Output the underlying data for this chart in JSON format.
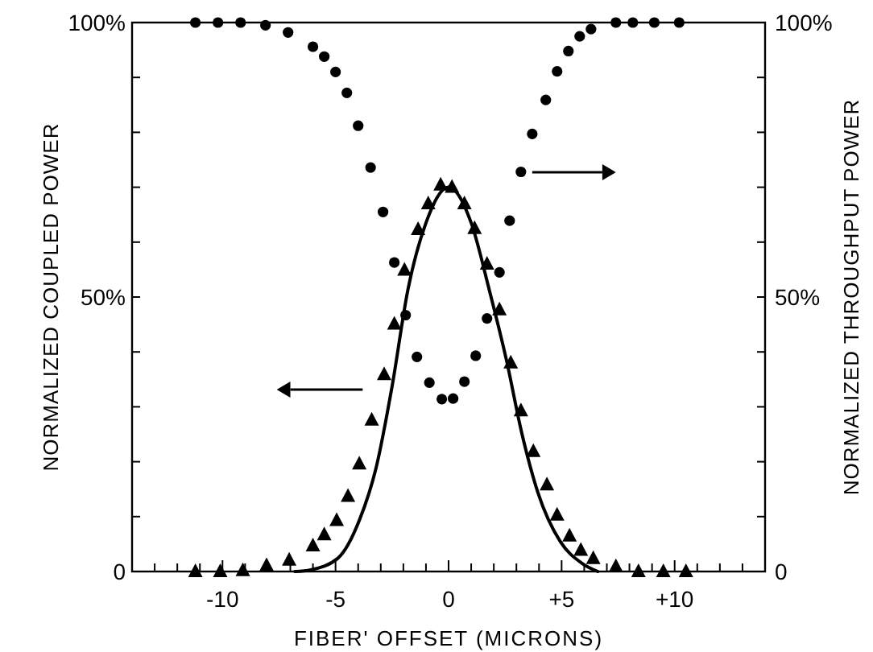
{
  "chart_data": {
    "type": "scatter",
    "xlabel": "FIBER' OFFSET  (MICRONS)",
    "ylabel": "NORMALIZED COUPLED POWER",
    "y2label": "NORMALIZED THROUGHPUT POWER",
    "xlim": [
      -14,
      14
    ],
    "xticks": [
      {
        "value": -13,
        "label": null
      },
      {
        "value": -12,
        "label": null
      },
      {
        "value": -11,
        "label": null
      },
      {
        "value": -10,
        "label": "-10"
      },
      {
        "value": -9,
        "label": null
      },
      {
        "value": -8,
        "label": null
      },
      {
        "value": -7,
        "label": null
      },
      {
        "value": -6,
        "label": null
      },
      {
        "value": -5,
        "label": "-5"
      },
      {
        "value": -4,
        "label": null
      },
      {
        "value": -3,
        "label": null
      },
      {
        "value": -2,
        "label": null
      },
      {
        "value": -1,
        "label": null
      },
      {
        "value": 0,
        "label": "0"
      },
      {
        "value": 1,
        "label": null
      },
      {
        "value": 2,
        "label": null
      },
      {
        "value": 3,
        "label": null
      },
      {
        "value": 4,
        "label": null
      },
      {
        "value": 5,
        "label": "+5"
      },
      {
        "value": 6,
        "label": null
      },
      {
        "value": 7,
        "label": null
      },
      {
        "value": 8,
        "label": null
      },
      {
        "value": 9,
        "label": null
      },
      {
        "value": 10,
        "label": "+10"
      },
      {
        "value": 11,
        "label": null
      },
      {
        "value": 12,
        "label": null
      },
      {
        "value": 13,
        "label": null
      }
    ],
    "ylim": [
      0,
      100
    ],
    "yticks": [
      {
        "value": 0,
        "label": "0"
      },
      {
        "value": 10,
        "label": null
      },
      {
        "value": 20,
        "label": null
      },
      {
        "value": 30,
        "label": null
      },
      {
        "value": 40,
        "label": null
      },
      {
        "value": 50,
        "label": "50%"
      },
      {
        "value": 60,
        "label": null
      },
      {
        "value": 70,
        "label": null
      },
      {
        "value": 80,
        "label": null
      },
      {
        "value": 90,
        "label": null
      },
      {
        "value": 100,
        "label": "100%"
      }
    ],
    "y2lim": [
      0,
      100
    ],
    "y2ticks": [
      {
        "value": 0,
        "label": "0"
      },
      {
        "value": 10,
        "label": null
      },
      {
        "value": 20,
        "label": null
      },
      {
        "value": 30,
        "label": null
      },
      {
        "value": 40,
        "label": null
      },
      {
        "value": 50,
        "label": "50%"
      },
      {
        "value": 60,
        "label": null
      },
      {
        "value": 70,
        "label": null
      },
      {
        "value": 80,
        "label": null
      },
      {
        "value": 90,
        "label": null
      },
      {
        "value": 100,
        "label": "100%"
      }
    ],
    "grid": false,
    "series": [
      {
        "marker": "triangle",
        "color": "#000000",
        "axis": "y",
        "x": [
          -11.2,
          -10.1,
          -9.1,
          -8.05,
          -7.05,
          -6.0,
          -5.5,
          -4.95,
          -4.45,
          -3.95,
          -3.4,
          -2.85,
          -2.4,
          -1.95,
          -1.35,
          -0.9,
          -0.35,
          0.15,
          0.7,
          1.15,
          1.7,
          2.25,
          2.75,
          3.2,
          3.75,
          4.35,
          4.8,
          5.35,
          5.85,
          6.4,
          7.4,
          8.4,
          9.5,
          10.5
        ],
        "values": [
          0,
          0,
          0.2,
          1.1,
          2.1,
          4.7,
          6.7,
          9.3,
          13.7,
          19.6,
          27.6,
          35.9,
          45.1,
          54.9,
          62.3,
          67,
          70.4,
          70,
          67,
          62.5,
          56,
          47.7,
          38,
          29.3,
          21.9,
          15.8,
          10.3,
          6.5,
          3.9,
          2.4,
          0.9,
          0,
          0,
          0
        ]
      },
      {
        "marker": "circle",
        "color": "#000000",
        "axis": "y2",
        "x": [
          -11.2,
          -10.2,
          -9.2,
          -8.1,
          -7.1,
          -6.0,
          -5.5,
          -5.0,
          -4.5,
          -4.0,
          -3.45,
          -2.9,
          -2.4,
          -1.9,
          -1.4,
          -0.85,
          -0.3,
          0.2,
          0.7,
          1.2,
          1.7,
          2.25,
          2.7,
          3.2,
          3.7,
          4.3,
          4.8,
          5.3,
          5.8,
          6.3,
          7.4,
          8.15,
          9.1,
          10.2
        ],
        "values": [
          100,
          100,
          100,
          99.5,
          98.2,
          95.6,
          93.8,
          91,
          87.2,
          81.2,
          73.6,
          65.5,
          56.3,
          46.7,
          39.1,
          34.4,
          31.4,
          31.5,
          34.6,
          39.3,
          46.1,
          54.5,
          63.9,
          72.8,
          79.7,
          85.9,
          91.1,
          94.8,
          97.5,
          98.8,
          100,
          100,
          100,
          100
        ]
      },
      {
        "type": "line",
        "marker": "none",
        "line_style": "solid",
        "color": "#000000",
        "x": [
          -6.8,
          -6.1,
          -4.9,
          -3.95,
          -3.2,
          -2.5,
          -1.8,
          -1,
          0,
          1,
          1.8,
          2.55,
          3.25,
          3.95,
          4.95,
          5.9,
          6.6
        ],
        "values": [
          0,
          0.3,
          2.4,
          9.3,
          19,
          33.7,
          51.3,
          63.5,
          70,
          63.5,
          51.3,
          38.7,
          25,
          14.4,
          5.4,
          1.5,
          0
        ]
      }
    ]
  }
}
